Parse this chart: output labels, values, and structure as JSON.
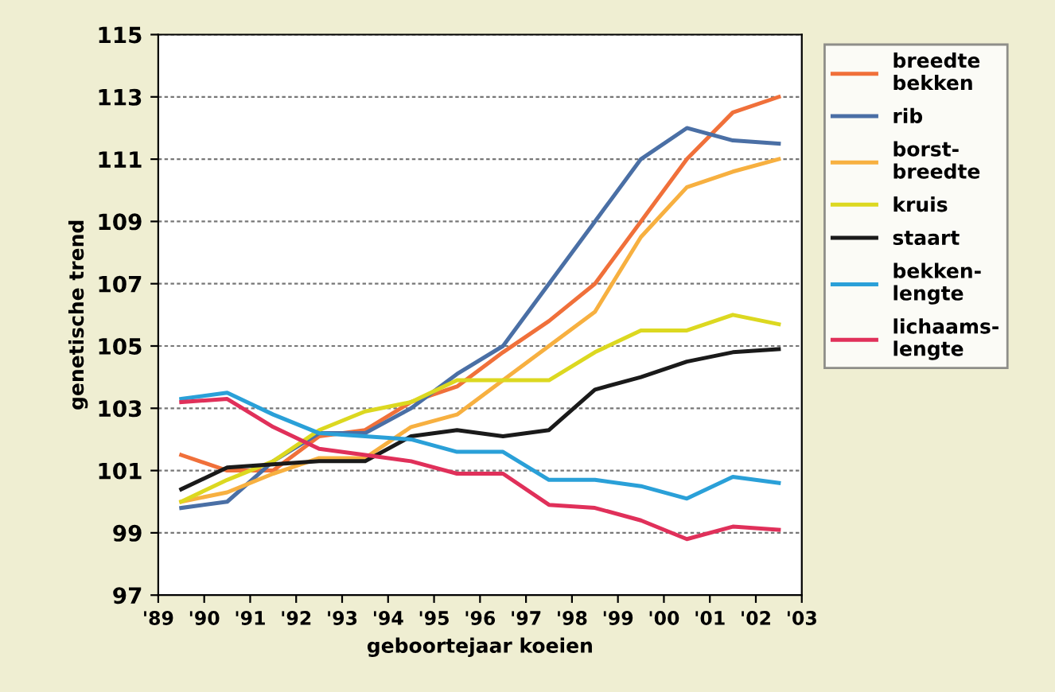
{
  "chart_data": {
    "type": "line",
    "xlabel": "geboortejaar koeien",
    "ylabel": "genetische trend",
    "x": [
      1989.5,
      1990.5,
      1991.5,
      1992.5,
      1993.5,
      1994.5,
      1995.5,
      1996.5,
      1997.5,
      1998.5,
      1999.5,
      2000.5,
      2001.5,
      2002.5
    ],
    "series": [
      {
        "name": "breedte\nbekken",
        "color": "#f0703a",
        "values": [
          101.5,
          101.0,
          101.0,
          102.1,
          102.3,
          103.2,
          103.7,
          104.8,
          105.8,
          107.0,
          109.0,
          111.0,
          112.5,
          113.0
        ]
      },
      {
        "name": "rib",
        "color": "#4a6fa5",
        "values": [
          99.8,
          100.0,
          101.3,
          102.2,
          102.2,
          103.0,
          104.1,
          105.0,
          107.0,
          109.0,
          111.0,
          112.0,
          111.6,
          111.5
        ]
      },
      {
        "name": "borst-\nbreedte",
        "color": "#f7b040",
        "values": [
          100.0,
          100.3,
          100.9,
          101.4,
          101.4,
          102.4,
          102.8,
          103.9,
          105.0,
          106.1,
          108.5,
          110.1,
          110.6,
          111.0
        ]
      },
      {
        "name": "kruis",
        "color": "#dcd820",
        "values": [
          100.0,
          100.7,
          101.3,
          102.3,
          102.9,
          103.2,
          103.9,
          103.9,
          103.9,
          104.8,
          105.5,
          105.5,
          106.0,
          105.7
        ]
      },
      {
        "name": "staart",
        "color": "#1a1a1a",
        "values": [
          100.4,
          101.1,
          101.2,
          101.3,
          101.3,
          102.1,
          102.3,
          102.1,
          102.3,
          103.6,
          104.0,
          104.5,
          104.8,
          104.9
        ]
      },
      {
        "name": "bekken-\nlengte",
        "color": "#2aa0d8",
        "values": [
          103.3,
          103.5,
          102.8,
          102.2,
          102.1,
          102.0,
          101.6,
          101.6,
          100.7,
          100.7,
          100.5,
          100.1,
          100.8,
          100.6
        ]
      },
      {
        "name": "lichaams-\nlengte",
        "color": "#e0305a",
        "values": [
          103.2,
          103.3,
          102.4,
          101.7,
          101.5,
          101.3,
          100.9,
          100.9,
          99.9,
          99.8,
          99.4,
          98.8,
          99.2,
          99.1
        ]
      }
    ],
    "xlim": [
      1989,
      2003
    ],
    "xticks": [
      {
        "value": 1989,
        "label": "'89"
      },
      {
        "value": 1990,
        "label": "'90"
      },
      {
        "value": 1991,
        "label": "'91"
      },
      {
        "value": 1992,
        "label": "'92"
      },
      {
        "value": 1993,
        "label": "'93"
      },
      {
        "value": 1994,
        "label": "'94"
      },
      {
        "value": 1995,
        "label": "'95"
      },
      {
        "value": 1996,
        "label": "'96"
      },
      {
        "value": 1997,
        "label": "'97"
      },
      {
        "value": 1998,
        "label": "'98"
      },
      {
        "value": 1999,
        "label": "'99"
      },
      {
        "value": 2000,
        "label": "'00"
      },
      {
        "value": 2001,
        "label": "'01"
      },
      {
        "value": 2002,
        "label": "'02"
      },
      {
        "value": 2003,
        "label": "'03"
      }
    ],
    "ylim": [
      97,
      115
    ],
    "yticks": [
      97,
      99,
      101,
      103,
      105,
      107,
      109,
      111,
      113,
      115
    ],
    "grid": "y",
    "legend": "right",
    "marker": "none",
    "line_style": "solid"
  }
}
